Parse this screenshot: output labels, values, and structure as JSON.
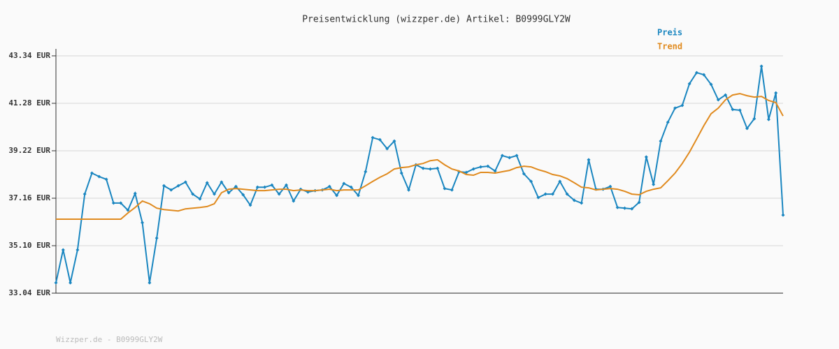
{
  "chart_data": {
    "type": "line",
    "title": "Preisentwicklung (wizzper.de) Artikel: B0999GLY2W",
    "footer": "Wizzper.de - B0999GLY2W",
    "ylim": [
      33.04,
      43.34
    ],
    "yticks": [
      {
        "value": 33.04,
        "label": "33.04 EUR"
      },
      {
        "value": 35.1,
        "label": "35.10 EUR"
      },
      {
        "value": 37.16,
        "label": "37.16 EUR"
      },
      {
        "value": 39.22,
        "label": "39.22 EUR"
      },
      {
        "value": 41.28,
        "label": "41.28 EUR"
      },
      {
        "value": 43.34,
        "label": "43.34 EUR"
      }
    ],
    "grid": true,
    "legend": "top-right",
    "series": [
      {
        "name": "Preis",
        "color": "#1a86c0",
        "markers": true,
        "values": [
          33.49,
          34.92,
          33.49,
          34.92,
          37.34,
          38.25,
          38.1,
          37.98,
          36.95,
          36.95,
          36.64,
          37.37,
          36.1,
          33.49,
          35.43,
          37.7,
          37.52,
          37.7,
          37.86,
          37.34,
          37.13,
          37.83,
          37.34,
          37.86,
          37.4,
          37.67,
          37.31,
          36.86,
          37.64,
          37.64,
          37.73,
          37.34,
          37.73,
          37.04,
          37.55,
          37.43,
          37.49,
          37.52,
          37.67,
          37.28,
          37.8,
          37.64,
          37.28,
          38.31,
          39.79,
          39.7,
          39.31,
          39.64,
          38.25,
          37.52,
          38.61,
          38.46,
          38.43,
          38.46,
          37.58,
          37.52,
          38.31,
          38.28,
          38.43,
          38.52,
          38.55,
          38.34,
          39.01,
          38.92,
          39.01,
          38.22,
          37.89,
          37.19,
          37.34,
          37.34,
          37.89,
          37.34,
          37.07,
          36.95,
          38.83,
          37.55,
          37.55,
          37.67,
          36.76,
          36.73,
          36.7,
          36.98,
          38.95,
          37.76,
          39.64,
          40.46,
          41.07,
          41.19,
          42.13,
          42.61,
          42.52,
          42.1,
          41.43,
          41.64,
          41.01,
          40.98,
          40.19,
          40.61,
          42.89,
          40.58,
          41.73,
          36.43
        ]
      },
      {
        "name": "Trend",
        "color": "#e08a1e",
        "markers": false,
        "values": [
          36.25,
          36.25,
          36.25,
          36.25,
          36.25,
          36.25,
          36.25,
          36.25,
          36.25,
          36.25,
          36.52,
          36.76,
          37.04,
          36.92,
          36.73,
          36.67,
          36.64,
          36.61,
          36.7,
          36.73,
          36.76,
          36.8,
          36.92,
          37.4,
          37.55,
          37.58,
          37.55,
          37.52,
          37.49,
          37.49,
          37.52,
          37.55,
          37.55,
          37.49,
          37.52,
          37.49,
          37.49,
          37.52,
          37.55,
          37.49,
          37.52,
          37.52,
          37.52,
          37.7,
          37.89,
          38.07,
          38.22,
          38.43,
          38.49,
          38.52,
          38.61,
          38.67,
          38.79,
          38.83,
          38.61,
          38.43,
          38.34,
          38.19,
          38.16,
          38.28,
          38.28,
          38.25,
          38.31,
          38.37,
          38.49,
          38.55,
          38.52,
          38.4,
          38.31,
          38.19,
          38.13,
          38.01,
          37.83,
          37.64,
          37.61,
          37.52,
          37.55,
          37.58,
          37.55,
          37.46,
          37.34,
          37.31,
          37.46,
          37.55,
          37.61,
          37.92,
          38.25,
          38.67,
          39.16,
          39.73,
          40.31,
          40.83,
          41.07,
          41.43,
          41.64,
          41.7,
          41.61,
          41.55,
          41.58,
          41.4,
          41.31,
          40.73
        ]
      }
    ]
  }
}
